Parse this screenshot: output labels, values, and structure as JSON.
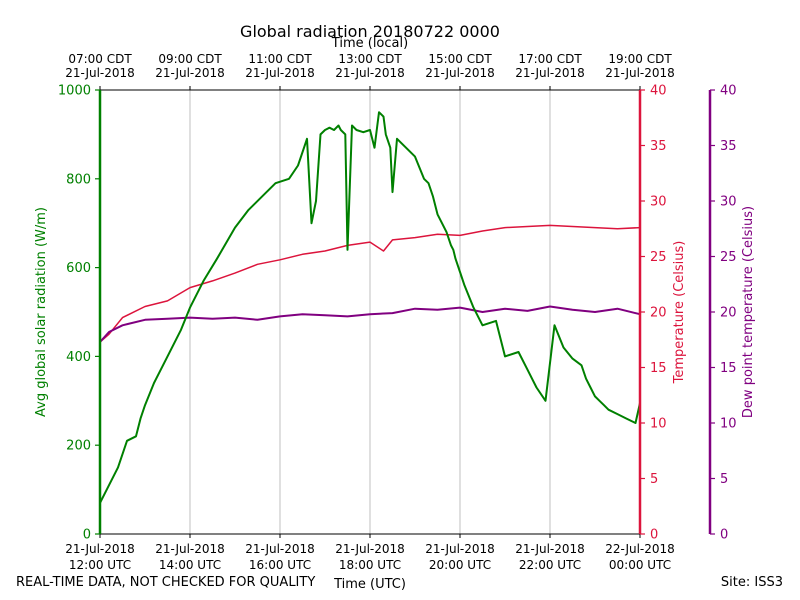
{
  "chart_data": {
    "type": "line",
    "title": "Global radiation 20180722 0000",
    "top_axis_label": "Time (local)",
    "xlabel": "Time (UTC)",
    "x_unit": "hours since 21-Jul-2018 12:00 UTC",
    "xlim": [
      0,
      12
    ],
    "bottom_ticks": [
      {
        "x": 0,
        "line1": "21-Jul-2018",
        "line2": "12:00 UTC"
      },
      {
        "x": 2,
        "line1": "21-Jul-2018",
        "line2": "14:00 UTC"
      },
      {
        "x": 4,
        "line1": "21-Jul-2018",
        "line2": "16:00 UTC"
      },
      {
        "x": 6,
        "line1": "21-Jul-2018",
        "line2": "18:00 UTC"
      },
      {
        "x": 8,
        "line1": "21-Jul-2018",
        "line2": "20:00 UTC"
      },
      {
        "x": 10,
        "line1": "21-Jul-2018",
        "line2": "22:00 UTC"
      },
      {
        "x": 12,
        "line1": "22-Jul-2018",
        "line2": "00:00 UTC"
      }
    ],
    "top_ticks": [
      {
        "x": 0,
        "line1": "07:00 CDT",
        "line2": "21-Jul-2018"
      },
      {
        "x": 2,
        "line1": "09:00 CDT",
        "line2": "21-Jul-2018"
      },
      {
        "x": 4,
        "line1": "11:00 CDT",
        "line2": "21-Jul-2018"
      },
      {
        "x": 6,
        "line1": "13:00 CDT",
        "line2": "21-Jul-2018"
      },
      {
        "x": 8,
        "line1": "15:00 CDT",
        "line2": "21-Jul-2018"
      },
      {
        "x": 10,
        "line1": "17:00 CDT",
        "line2": "21-Jul-2018"
      },
      {
        "x": 12,
        "line1": "19:00 CDT",
        "line2": "21-Jul-2018"
      }
    ],
    "grid": "vertical",
    "axes": [
      {
        "id": "radiation",
        "label": "Avg global solar radiation (W/m)",
        "color": "#008000",
        "ylim": [
          0,
          1000
        ],
        "ticks": [
          0,
          200,
          400,
          600,
          800,
          1000
        ]
      },
      {
        "id": "temperature",
        "label": "Temperature (Celsius)",
        "color": "#dc143c",
        "ylim": [
          0,
          40
        ],
        "ticks": [
          0,
          5,
          10,
          15,
          20,
          25,
          30,
          35,
          40
        ]
      },
      {
        "id": "dewpoint",
        "label": "Dew point temperature (Celsius)",
        "color": "#800080",
        "ylim": [
          0,
          40
        ],
        "ticks": [
          0,
          5,
          10,
          15,
          20,
          25,
          30,
          35,
          40
        ]
      }
    ],
    "series": [
      {
        "name": "Avg global solar radiation",
        "axis": "radiation",
        "x": [
          0,
          0.2,
          0.4,
          0.6,
          0.8,
          0.9,
          1.0,
          1.2,
          1.5,
          1.8,
          2.0,
          2.3,
          2.6,
          3.0,
          3.3,
          3.6,
          3.9,
          4.2,
          4.4,
          4.6,
          4.7,
          4.8,
          4.9,
          5.0,
          5.1,
          5.2,
          5.3,
          5.35,
          5.45,
          5.5,
          5.6,
          5.7,
          5.85,
          6.0,
          6.1,
          6.2,
          6.3,
          6.35,
          6.45,
          6.5,
          6.6,
          6.8,
          7.0,
          7.2,
          7.3,
          7.4,
          7.5,
          7.6,
          7.7,
          7.8,
          7.85,
          7.9,
          8.0,
          8.1,
          8.3,
          8.5,
          8.8,
          9.0,
          9.3,
          9.5,
          9.7,
          9.9,
          10.1,
          10.3,
          10.5,
          10.7,
          10.8,
          10.9,
          11.0,
          11.1,
          11.2,
          11.3,
          11.5,
          11.7,
          11.9,
          12.0
        ],
        "values": [
          70,
          110,
          150,
          210,
          220,
          260,
          290,
          340,
          400,
          460,
          510,
          570,
          620,
          690,
          730,
          760,
          790,
          800,
          830,
          890,
          700,
          750,
          900,
          910,
          915,
          910,
          920,
          910,
          900,
          640,
          920,
          910,
          905,
          910,
          870,
          950,
          940,
          900,
          870,
          770,
          890,
          870,
          850,
          800,
          790,
          760,
          720,
          700,
          680,
          650,
          640,
          620,
          590,
          560,
          510,
          470,
          480,
          400,
          410,
          370,
          330,
          300,
          470,
          420,
          395,
          380,
          350,
          330,
          310,
          300,
          290,
          280,
          270,
          260,
          250,
          295
        ]
      },
      {
        "name": "Temperature",
        "axis": "temperature",
        "x": [
          0,
          0.2,
          0.5,
          1.0,
          1.5,
          2.0,
          2.5,
          3.0,
          3.5,
          4.0,
          4.5,
          5.0,
          5.5,
          6.0,
          6.3,
          6.5,
          7.0,
          7.5,
          8.0,
          8.5,
          9.0,
          9.5,
          10.0,
          10.5,
          11.0,
          11.5,
          12.0
        ],
        "values": [
          17.3,
          18.0,
          19.5,
          20.5,
          21.0,
          22.2,
          22.8,
          23.5,
          24.3,
          24.7,
          25.2,
          25.5,
          26.0,
          26.3,
          25.5,
          26.5,
          26.7,
          27.0,
          26.9,
          27.3,
          27.6,
          27.7,
          27.8,
          27.7,
          27.6,
          27.5,
          27.6
        ]
      },
      {
        "name": "Dew point temperature",
        "axis": "dewpoint",
        "x": [
          0,
          0.2,
          0.5,
          1.0,
          1.5,
          2.0,
          2.5,
          3.0,
          3.5,
          4.0,
          4.5,
          5.0,
          5.5,
          6.0,
          6.5,
          7.0,
          7.5,
          8.0,
          8.5,
          9.0,
          9.5,
          10.0,
          10.5,
          11.0,
          11.5,
          12.0
        ],
        "values": [
          17.3,
          18.2,
          18.8,
          19.3,
          19.4,
          19.5,
          19.4,
          19.5,
          19.3,
          19.6,
          19.8,
          19.7,
          19.6,
          19.8,
          19.9,
          20.3,
          20.2,
          20.4,
          20.0,
          20.3,
          20.1,
          20.5,
          20.2,
          20.0,
          20.3,
          19.8
        ]
      }
    ]
  },
  "footer": {
    "note": "REAL-TIME DATA, NOT CHECKED FOR QUALITY",
    "site": "Site: ISS3"
  }
}
